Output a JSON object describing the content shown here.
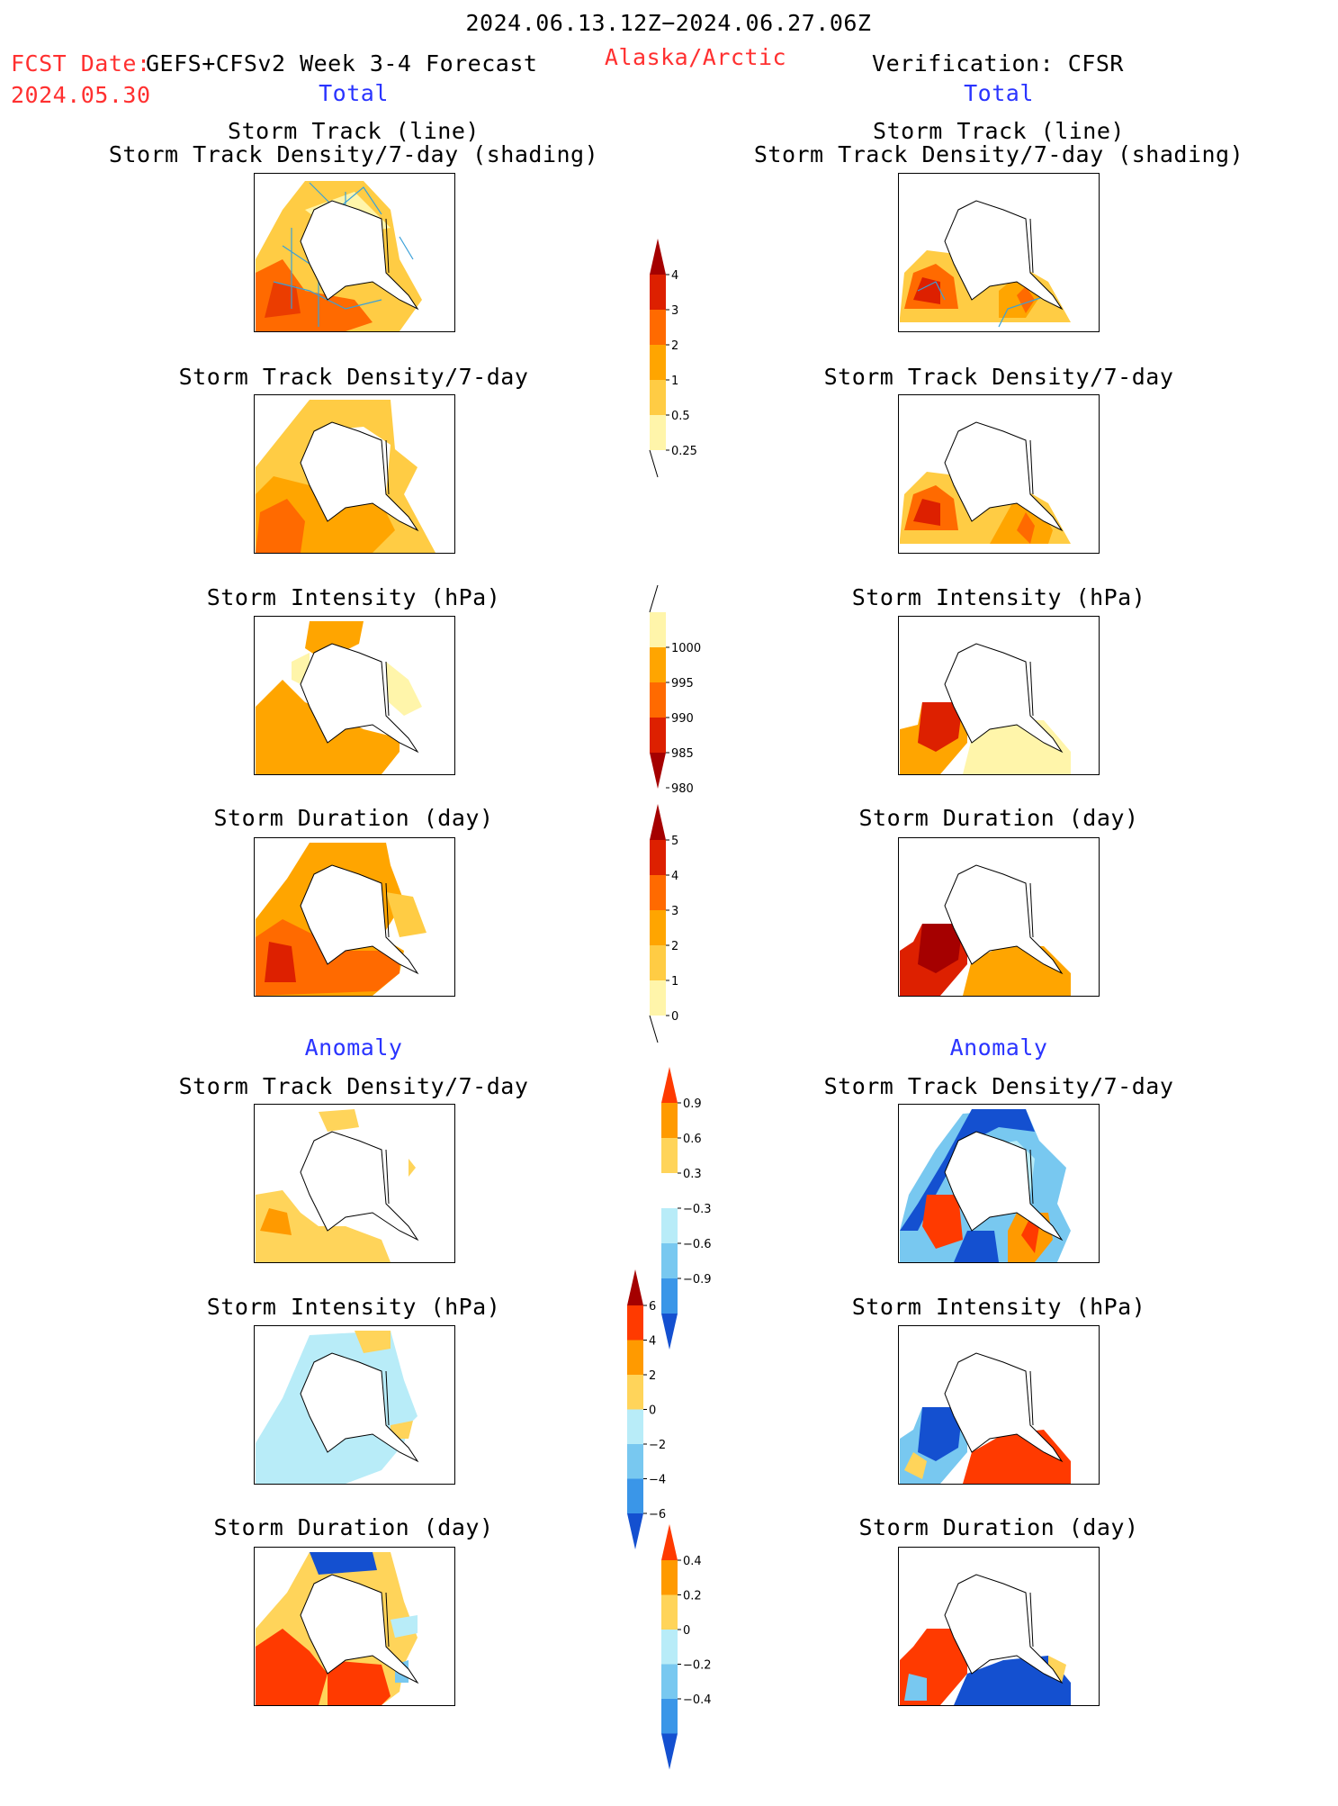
{
  "header": {
    "period": "2024.06.13.12Z−2024.06.27.06Z",
    "fcst_label": "FCST Date:",
    "fcst_date": "2024.05.30",
    "model": "GEFS+CFSv2 Week 3-4 Forecast",
    "region": "Alaska/Arctic",
    "verification": "Verification: CFSR"
  },
  "sections": {
    "total_left": "Total",
    "total_right": "Total",
    "anomaly_left": "Anomaly",
    "anomaly_right": "Anomaly"
  },
  "panel_titles": {
    "track_line": "Storm Track (line)",
    "track_shading": "Storm Track Density/7-day (shading)",
    "density": "Storm Track Density/7-day",
    "intensity": "Storm Intensity (hPa)",
    "duration": "Storm Duration (day)"
  },
  "colorbars": {
    "density": {
      "labels": [
        "4",
        "3",
        "2",
        "1",
        "0.5",
        "0.25"
      ],
      "colors": [
        "#a50000",
        "#dd2000",
        "#ff6a00",
        "#ffa500",
        "#ffcc44",
        "#fff5aa"
      ]
    },
    "intensity": {
      "labels": [
        "1000",
        "995",
        "990",
        "985",
        "980"
      ],
      "colors": [
        "#fff5aa",
        "#ffa500",
        "#ff6a00",
        "#dd2000",
        "#a50000"
      ]
    },
    "duration": {
      "labels": [
        "5",
        "4",
        "3",
        "2",
        "1",
        "0"
      ],
      "colors": [
        "#a50000",
        "#dd2000",
        "#ff6a00",
        "#ffa500",
        "#ffcc44",
        "#fff5aa"
      ]
    },
    "density_anom": {
      "labels": [
        "0.9",
        "0.6",
        "0.3",
        "−0.3",
        "−0.6",
        "−0.9"
      ],
      "colors": [
        "#ff3a00",
        "#ff9a00",
        "#ffd45a",
        "#ffffff",
        "#b8ecf8",
        "#78c8f0",
        "#3a96e8",
        "#1450d0"
      ]
    },
    "intensity_anom": {
      "labels": [
        "6",
        "4",
        "2",
        "0",
        "−2",
        "−4",
        "−6"
      ],
      "colors": [
        "#a50000",
        "#ff3a00",
        "#ff9a00",
        "#ffd45a",
        "#b8ecf8",
        "#78c8f0",
        "#3a96e8",
        "#1450d0"
      ]
    },
    "duration_anom": {
      "labels": [
        "0.4",
        "0.2",
        "0",
        "−0.2",
        "−0.4"
      ],
      "colors": [
        "#ff3a00",
        "#ff9a00",
        "#ffd45a",
        "#b8ecf8",
        "#78c8f0",
        "#3a96e8",
        "#1450d0"
      ]
    }
  }
}
